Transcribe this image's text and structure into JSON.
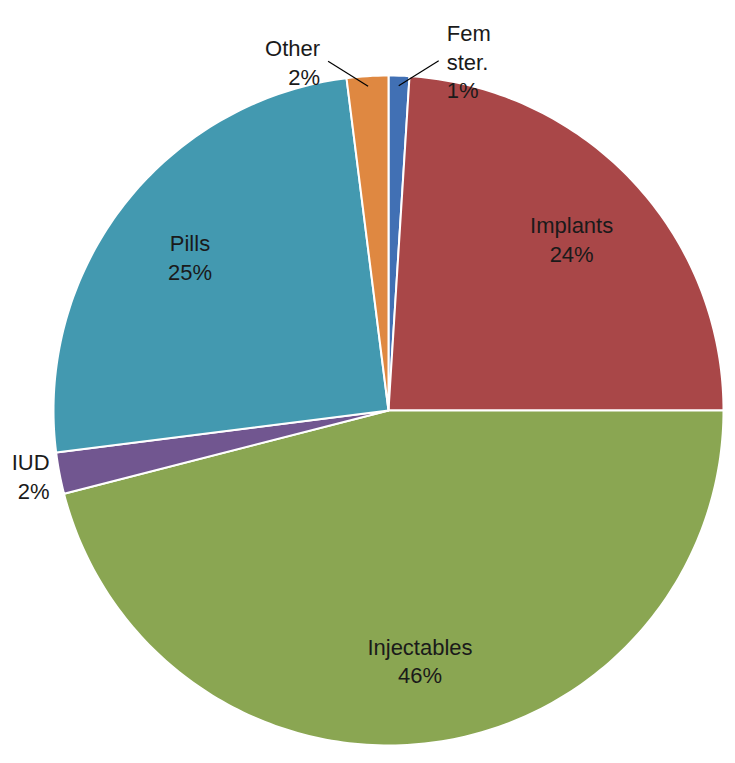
{
  "chart_data": {
    "type": "pie",
    "categories": [
      "Fem ster.",
      "Implants",
      "Injectables",
      "IUD",
      "Pills",
      "Other"
    ],
    "values": [
      1,
      24,
      46,
      2,
      25,
      2
    ],
    "value_labels": [
      "1%",
      "24%",
      "46%",
      "2%",
      "25%",
      "2%"
    ],
    "colors": [
      "#4170B4",
      "#A94748",
      "#8AA652",
      "#715690",
      "#4399B0",
      "#DF8841"
    ],
    "data_labels": true
  }
}
